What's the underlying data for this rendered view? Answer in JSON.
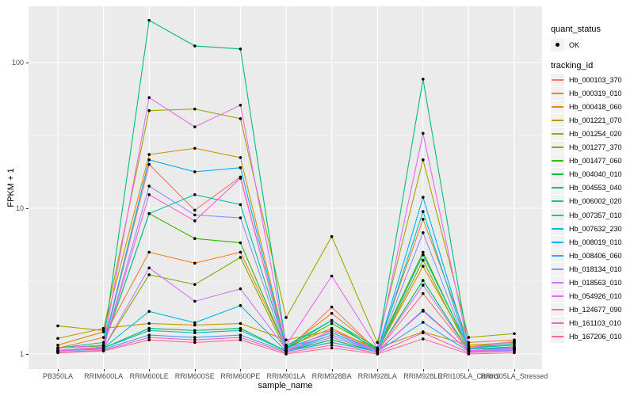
{
  "chart_data": {
    "type": "line",
    "title": "",
    "xlabel": "sample_name",
    "ylabel": "FPKM + 1",
    "y_scale": "log10",
    "y_ticks": [
      1,
      10,
      100
    ],
    "y_minor_ticks": [
      3.1623,
      31.623
    ],
    "ylim": [
      0.82,
      240
    ],
    "grid": true,
    "panel_bg": "#EBEBEB",
    "grid_color": "#FFFFFF",
    "point_color": "#000000",
    "axis_text_color": "#4D4D4D",
    "categories": [
      "PB350LA",
      "RRIM600LA",
      "RRIM600LE",
      "RRIM600SE",
      "RRIM600PE",
      "RRIM901LA",
      "RRIM928BA",
      "RRIM928LA",
      "RRIM928LE",
      "RRII105LA_Control",
      "RRII105LA_Stressed"
    ],
    "series": [
      {
        "name": "Hb_000103_370",
        "color": "#F8766D",
        "values": [
          1.06,
          1.12,
          20,
          9.7,
          16.4,
          1.05,
          2.1,
          1.05,
          2.6,
          1.05,
          1.06
        ]
      },
      {
        "name": "Hb_000319_010",
        "color": "#EA8331",
        "values": [
          1.1,
          1.3,
          5.0,
          4.2,
          5.0,
          1.1,
          1.9,
          1.08,
          8.4,
          1.2,
          1.25
        ]
      },
      {
        "name": "Hb_000418_060",
        "color": "#D89000",
        "values": [
          1.15,
          1.42,
          23.4,
          25.8,
          22.3,
          1.12,
          1.5,
          1.06,
          4.0,
          1.12,
          1.22
        ]
      },
      {
        "name": "Hb_001221_070",
        "color": "#C09B00",
        "values": [
          1.28,
          1.5,
          1.62,
          1.58,
          1.62,
          1.25,
          1.45,
          1.1,
          1.42,
          1.15,
          1.2
        ]
      },
      {
        "name": "Hb_001254_020",
        "color": "#A3A500",
        "values": [
          1.56,
          1.45,
          46.8,
          48,
          41.2,
          1.78,
          6.4,
          1.2,
          21.5,
          1.3,
          1.38
        ]
      },
      {
        "name": "Hb_001277_370",
        "color": "#7CAE00",
        "values": [
          1.05,
          1.1,
          3.5,
          3.0,
          4.6,
          1.05,
          1.3,
          1.04,
          4.4,
          1.05,
          1.1
        ]
      },
      {
        "name": "Hb_001477_060",
        "color": "#39B600",
        "values": [
          1.1,
          1.14,
          9.2,
          6.2,
          5.8,
          1.08,
          1.62,
          1.08,
          5.0,
          1.08,
          1.12
        ]
      },
      {
        "name": "Hb_004040_010",
        "color": "#00BB4E",
        "values": [
          1.05,
          1.1,
          1.5,
          1.45,
          1.5,
          1.05,
          1.25,
          1.04,
          3.2,
          1.05,
          1.08
        ]
      },
      {
        "name": "Hb_004553_040",
        "color": "#00BF7D",
        "values": [
          1.1,
          1.2,
          195,
          130,
          124,
          1.14,
          1.7,
          1.1,
          77,
          1.1,
          1.15
        ]
      },
      {
        "name": "Hb_006002_020",
        "color": "#00C1A3",
        "values": [
          1.1,
          1.15,
          9.2,
          12.4,
          10.6,
          1.1,
          1.7,
          1.05,
          4.8,
          1.1,
          1.18
        ]
      },
      {
        "name": "Hb_007357_010",
        "color": "#00BFC4",
        "values": [
          1.05,
          1.1,
          1.45,
          1.4,
          1.45,
          1.05,
          1.2,
          1.04,
          9.5,
          1.05,
          1.1
        ]
      },
      {
        "name": "Hb_007632_230",
        "color": "#00BAE0",
        "values": [
          1.05,
          1.1,
          1.96,
          1.64,
          2.15,
          1.05,
          1.35,
          1.04,
          2.0,
          1.05,
          1.08
        ]
      },
      {
        "name": "Hb_008019_010",
        "color": "#00B0F6",
        "values": [
          1.1,
          1.15,
          21.5,
          17.8,
          19,
          1.1,
          1.4,
          1.05,
          11.9,
          1.08,
          1.1
        ]
      },
      {
        "name": "Hb_008406_060",
        "color": "#35A2FF",
        "values": [
          1.05,
          1.08,
          1.35,
          1.3,
          1.35,
          1.04,
          1.2,
          1.04,
          1.65,
          1.04,
          1.06
        ]
      },
      {
        "name": "Hb_018134_010",
        "color": "#9590FF",
        "values": [
          1.05,
          1.1,
          14.2,
          9.0,
          8.6,
          1.05,
          1.3,
          1.04,
          6.8,
          1.05,
          1.06
        ]
      },
      {
        "name": "Hb_018563_010",
        "color": "#C77CFF",
        "values": [
          1.06,
          1.1,
          3.9,
          2.3,
          2.8,
          1.08,
          1.35,
          1.05,
          2.97,
          1.05,
          1.1
        ]
      },
      {
        "name": "Hb_054926_010",
        "color": "#E76BF3",
        "values": [
          1.1,
          1.15,
          57.5,
          36.2,
          51,
          1.15,
          3.43,
          1.1,
          32.7,
          1.1,
          1.22
        ]
      },
      {
        "name": "Hb_124677_090",
        "color": "#FA62DB",
        "values": [
          1.05,
          1.1,
          12.4,
          8.2,
          16.1,
          1.05,
          1.45,
          1.05,
          1.97,
          1.05,
          1.08
        ]
      },
      {
        "name": "Hb_161103_010",
        "color": "#FF62BC",
        "values": [
          1.03,
          1.06,
          1.3,
          1.25,
          1.3,
          1.02,
          1.15,
          1.02,
          1.4,
          1.02,
          1.05
        ]
      },
      {
        "name": "Hb_167206_010",
        "color": "#FF6A98",
        "values": [
          1.02,
          1.05,
          1.25,
          1.2,
          1.25,
          1.0,
          1.1,
          1.0,
          1.27,
          1.0,
          1.02
        ]
      }
    ],
    "legend_position": "right"
  },
  "legend": {
    "quant_status": {
      "title": "quant_status",
      "items": [
        {
          "label": "OK"
        }
      ]
    },
    "tracking": {
      "title": "tracking_id"
    }
  }
}
